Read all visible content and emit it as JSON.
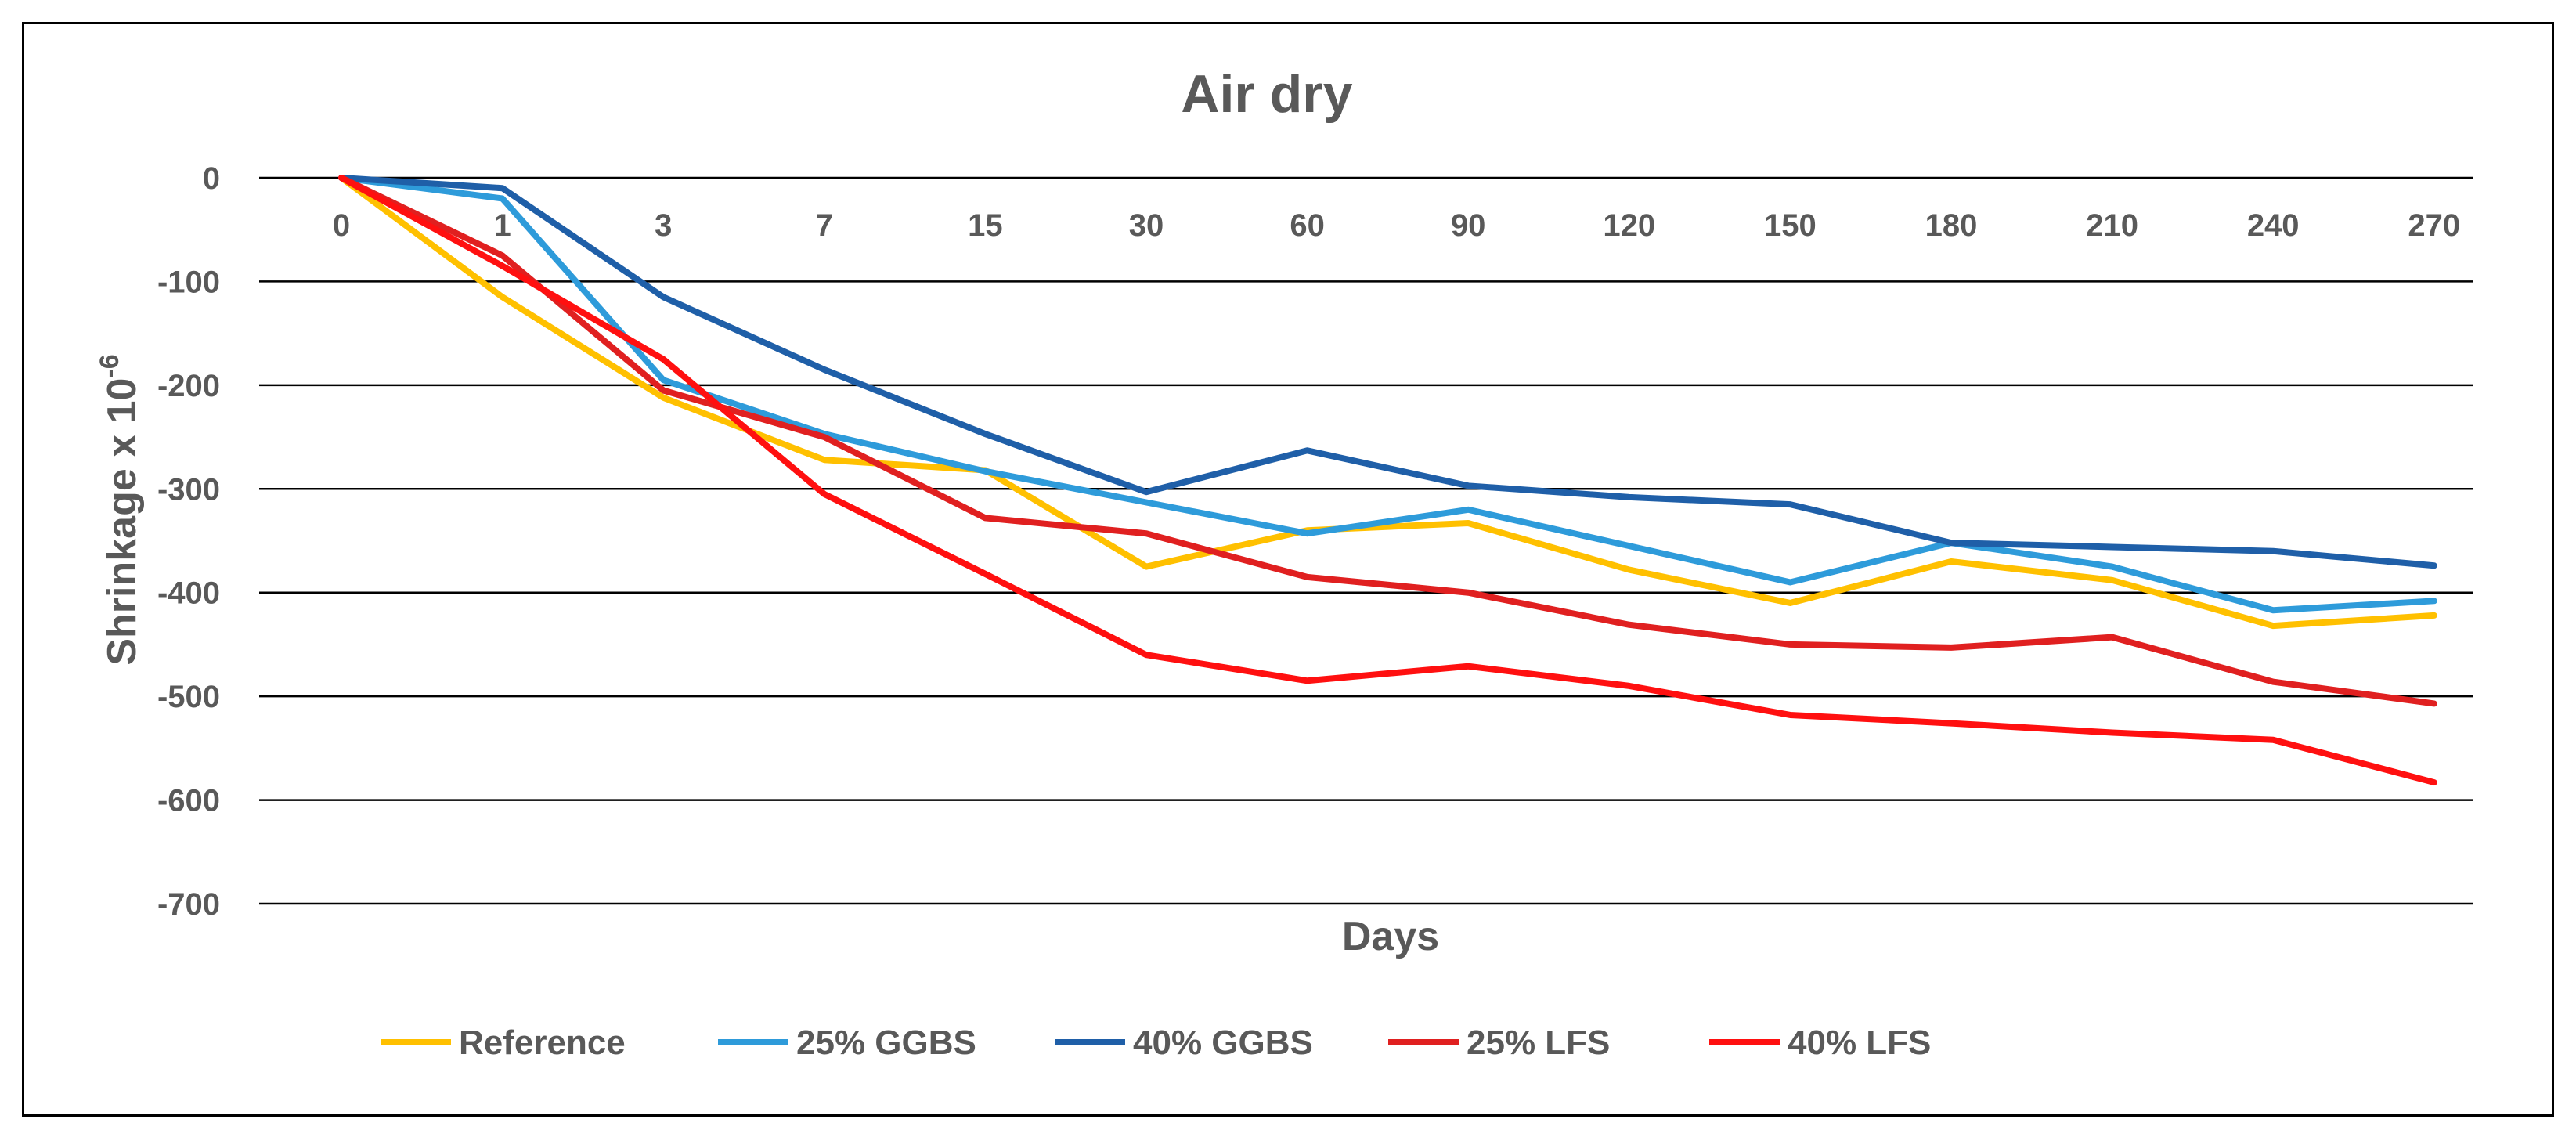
{
  "chart_data": {
    "type": "line",
    "title": "Air dry",
    "xlabel": "Days",
    "ylabel": "Shrinkage x 10",
    "ylabel_superscript": "-6",
    "categories": [
      "0",
      "1",
      "3",
      "7",
      "15",
      "30",
      "60",
      "90",
      "120",
      "150",
      "180",
      "210",
      "240",
      "270"
    ],
    "ylim": [
      -700,
      0
    ],
    "yticks": [
      "0",
      "-100",
      "-200",
      "-300",
      "-400",
      "-500",
      "-600",
      "-700"
    ],
    "ytick_values": [
      0,
      -100,
      -200,
      -300,
      -400,
      -500,
      -600,
      -700
    ],
    "grid": true,
    "legend_position": "bottom",
    "series": [
      {
        "name": "Reference",
        "color": "#FFC000",
        "values": [
          0,
          -115,
          -212,
          -272,
          -282,
          -375,
          -340,
          -333,
          -378,
          -410,
          -370,
          -388,
          -432,
          -422
        ]
      },
      {
        "name": "25% GGBS",
        "color": "#2E9BDA",
        "values": [
          0,
          -20,
          -195,
          -247,
          -283,
          -313,
          -343,
          -320,
          -355,
          -390,
          -352,
          -375,
          -417,
          -408
        ]
      },
      {
        "name": "40% GGBS",
        "color": "#1F5FA8",
        "values": [
          0,
          -10,
          -115,
          -185,
          -247,
          -303,
          -263,
          -297,
          -308,
          -315,
          -352,
          -356,
          -360,
          -374
        ]
      },
      {
        "name": "25% LFS",
        "color": "#E02020",
        "values": [
          0,
          -75,
          -205,
          -250,
          -328,
          -343,
          -385,
          -400,
          -431,
          -450,
          -453,
          -443,
          -486,
          -507
        ]
      },
      {
        "name": "40% LFS",
        "color": "#FF1010",
        "values": [
          0,
          -85,
          -175,
          -305,
          -382,
          -460,
          -485,
          -471,
          -490,
          -518,
          -526,
          -535,
          -542,
          -583
        ]
      }
    ]
  }
}
